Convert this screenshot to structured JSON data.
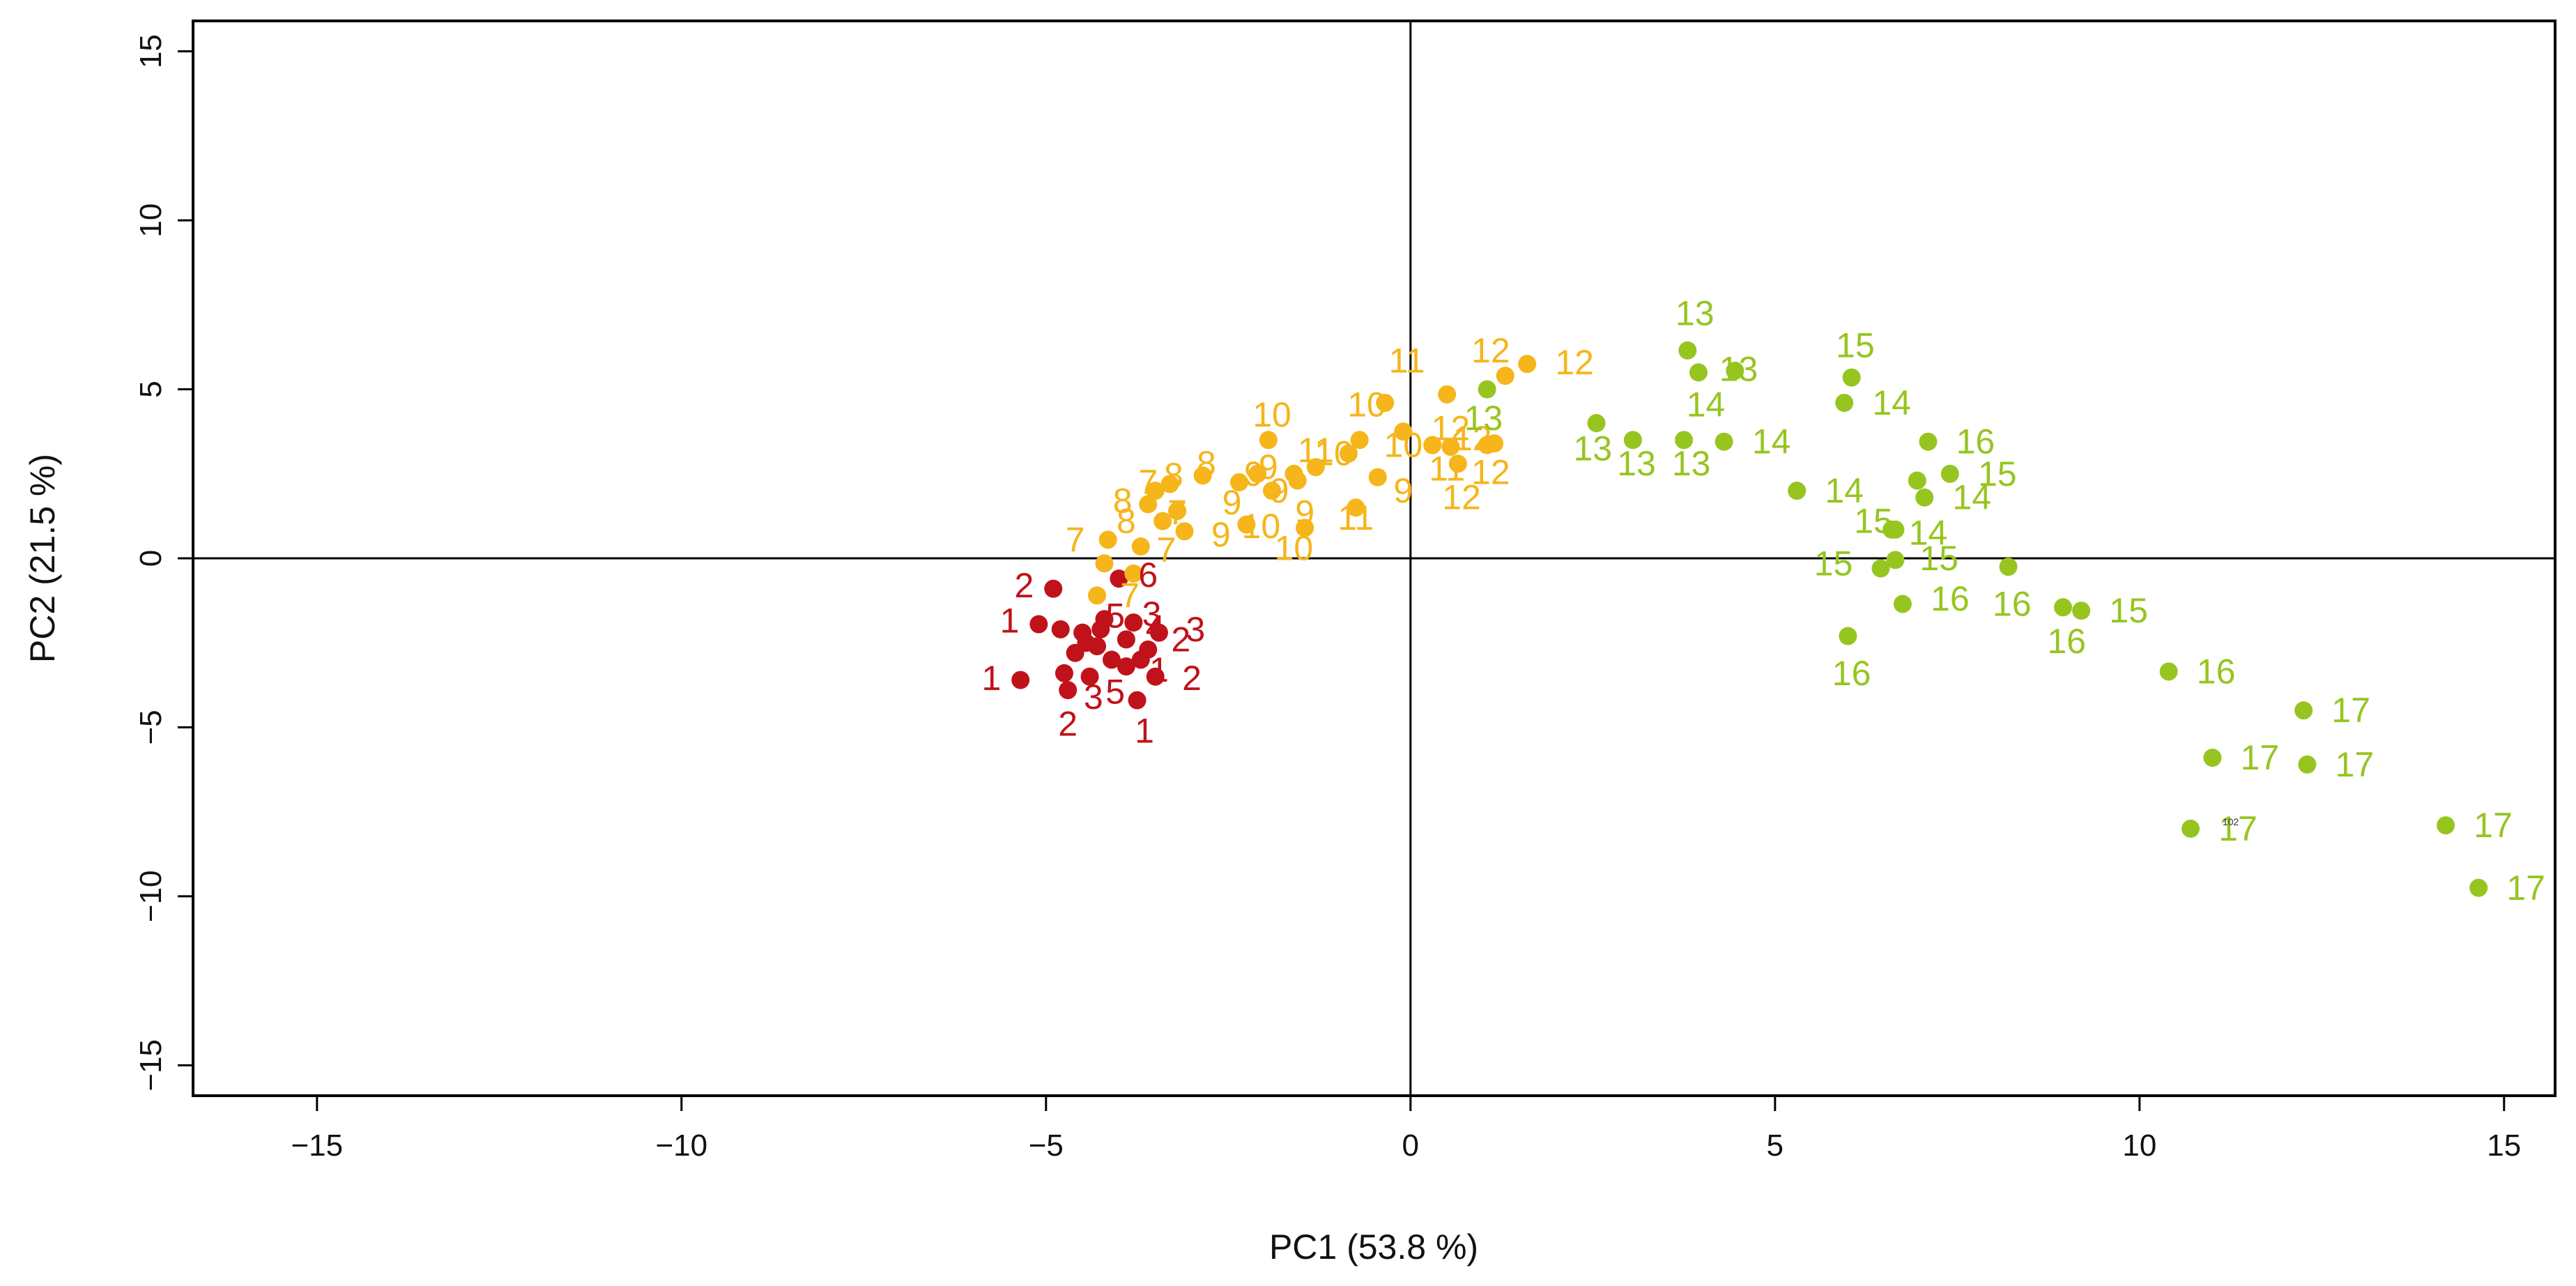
{
  "chart_data": {
    "type": "scatter",
    "title": "",
    "xlabel": "PC1 (53.8 %)",
    "ylabel": "PC2 (21.5 %)",
    "xlim": [
      -16.7,
      15.7
    ],
    "ylim": [
      -15.9,
      15.9
    ],
    "xticks": [
      -15,
      -10,
      -5,
      0,
      5,
      10,
      15
    ],
    "yticks": [
      -15,
      -10,
      -5,
      0,
      5,
      10,
      15
    ],
    "xtick_labels": [
      "−15",
      "−10",
      "−5",
      "0",
      "5",
      "10",
      "15"
    ],
    "ytick_labels": [
      "−15",
      "−10",
      "−5",
      "0",
      "5",
      "10",
      "15"
    ],
    "reference_lines": {
      "x": 0,
      "y": 0
    },
    "groups": {
      "red": {
        "color": "#C0121A"
      },
      "orange": {
        "color": "#F5B51B"
      },
      "green": {
        "color": "#96C520"
      }
    },
    "series": [
      {
        "name": "red",
        "color": "#C0121A",
        "points": [
          {
            "x": -5.35,
            "y": -3.6,
            "label": "1",
            "dx": -0.4,
            "dy": 0.05
          },
          {
            "x": -5.1,
            "y": -1.95,
            "label": "1",
            "dx": -0.4,
            "dy": 0.1
          },
          {
            "x": -4.9,
            "y": -0.9,
            "label": "2",
            "dx": -0.4,
            "dy": 0.1
          },
          {
            "x": -4.75,
            "y": -3.4,
            "label": "2",
            "dx": 0.05,
            "dy": -1.5
          },
          {
            "x": -4.7,
            "y": -3.9,
            "label": "3",
            "dx": 0.35,
            "dy": -0.2
          },
          {
            "x": -4.6,
            "y": -2.8,
            "label": "",
            "dx": 0,
            "dy": 0
          },
          {
            "x": -4.5,
            "y": -2.2,
            "label": "",
            "dx": 0,
            "dy": 0
          },
          {
            "x": -4.4,
            "y": -3.5,
            "label": "5",
            "dx": 0.35,
            "dy": -0.45
          },
          {
            "x": -4.3,
            "y": -2.6,
            "label": "",
            "dx": 0,
            "dy": 0
          },
          {
            "x": -4.2,
            "y": -1.8,
            "label": "5",
            "dx": 0.15,
            "dy": 0.1
          },
          {
            "x": -4.1,
            "y": -3.0,
            "label": "",
            "dx": 0,
            "dy": 0
          },
          {
            "x": -4.0,
            "y": -0.6,
            "label": "6",
            "dx": 0.4,
            "dy": 0.1
          },
          {
            "x": -3.9,
            "y": -2.4,
            "label": "4",
            "dx": 0.4,
            "dy": 0.35
          },
          {
            "x": -3.8,
            "y": -1.9,
            "label": "3",
            "dx": 0.25,
            "dy": 0.25
          },
          {
            "x": -3.75,
            "y": -4.2,
            "label": "1",
            "dx": 0.1,
            "dy": -0.9
          },
          {
            "x": -3.6,
            "y": -2.7,
            "label": "2",
            "dx": 0.45,
            "dy": 0.3
          },
          {
            "x": -3.5,
            "y": -3.5,
            "label": "2",
            "dx": 0.5,
            "dy": -0.05
          },
          {
            "x": -3.45,
            "y": -2.2,
            "label": "3",
            "dx": 0.5,
            "dy": 0.1
          },
          {
            "x": -3.9,
            "y": -3.2,
            "label": "1",
            "dx": 0.45,
            "dy": -0.1
          },
          {
            "x": -4.45,
            "y": -2.5,
            "label": "",
            "dx": 0,
            "dy": 0
          },
          {
            "x": -4.25,
            "y": -2.1,
            "label": "",
            "dx": 0,
            "dy": 0
          },
          {
            "x": -3.7,
            "y": -3.0,
            "label": "",
            "dx": 0,
            "dy": 0
          },
          {
            "x": -4.8,
            "y": -2.1,
            "label": "",
            "dx": 0,
            "dy": 0
          }
        ]
      },
      {
        "name": "orange",
        "color": "#F5B51B",
        "points": [
          {
            "x": -4.15,
            "y": 0.55,
            "label": "7",
            "dx": -0.45,
            "dy": 0.0
          },
          {
            "x": -4.2,
            "y": -0.15,
            "label": "",
            "dx": 0,
            "dy": 0
          },
          {
            "x": -4.3,
            "y": -1.1,
            "label": "7",
            "dx": 0.45,
            "dy": 0.0
          },
          {
            "x": -3.8,
            "y": -0.45,
            "label": "",
            "dx": 0,
            "dy": 0
          },
          {
            "x": -3.7,
            "y": 0.35,
            "label": "7",
            "dx": 0.35,
            "dy": -0.1
          },
          {
            "x": -3.6,
            "y": 1.6,
            "label": "8",
            "dx": -0.35,
            "dy": 0.1
          },
          {
            "x": -3.5,
            "y": 2.0,
            "label": "7",
            "dx": -0.1,
            "dy": 0.25
          },
          {
            "x": -3.4,
            "y": 1.1,
            "label": "8",
            "dx": -0.5,
            "dy": 0.0
          },
          {
            "x": -3.3,
            "y": 2.2,
            "label": "8",
            "dx": 0.05,
            "dy": 0.25
          },
          {
            "x": -3.2,
            "y": 1.4,
            "label": "7",
            "dx": 0.0,
            "dy": -0.05
          },
          {
            "x": -3.1,
            "y": 0.8,
            "label": "9",
            "dx": 0.5,
            "dy": -0.1
          },
          {
            "x": -2.85,
            "y": 2.45,
            "label": "8",
            "dx": 0.05,
            "dy": 0.35
          },
          {
            "x": -2.35,
            "y": 2.25,
            "label": "9",
            "dx": -0.1,
            "dy": -0.6
          },
          {
            "x": -2.25,
            "y": 1.0,
            "label": "10",
            "dx": 0.2,
            "dy": -0.05
          },
          {
            "x": -2.1,
            "y": 2.5,
            "label": "9",
            "dx": -0.05,
            "dy": 0.0
          },
          {
            "x": -1.95,
            "y": 3.5,
            "label": "10",
            "dx": 0.05,
            "dy": 0.75
          },
          {
            "x": -1.9,
            "y": 2.0,
            "label": "9",
            "dx": 0.1,
            "dy": 0.0
          },
          {
            "x": -1.6,
            "y": 2.5,
            "label": "9",
            "dx": -0.35,
            "dy": 0.2
          },
          {
            "x": -1.55,
            "y": 2.3,
            "label": "9",
            "dx": 0.1,
            "dy": -0.95
          },
          {
            "x": -1.45,
            "y": 0.9,
            "label": "10",
            "dx": -0.15,
            "dy": -0.6
          },
          {
            "x": -1.3,
            "y": 2.7,
            "label": "11",
            "dx": 0.0,
            "dy": 0.5
          },
          {
            "x": -0.85,
            "y": 3.1,
            "label": "10",
            "dx": -0.2,
            "dy": 0.0
          },
          {
            "x": -0.75,
            "y": 1.5,
            "label": "11",
            "dx": 0.0,
            "dy": -0.3
          },
          {
            "x": -0.7,
            "y": 3.5,
            "label": "",
            "dx": 0,
            "dy": 0
          },
          {
            "x": -0.45,
            "y": 2.4,
            "label": "9",
            "dx": 0.35,
            "dy": -0.4
          },
          {
            "x": -0.35,
            "y": 4.6,
            "label": "10",
            "dx": -0.25,
            "dy": -0.05
          },
          {
            "x": -0.1,
            "y": 3.75,
            "label": "10",
            "dx": 0.0,
            "dy": -0.4
          },
          {
            "x": 0.3,
            "y": 3.35,
            "label": "11",
            "dx": 0.2,
            "dy": -0.7
          },
          {
            "x": 0.5,
            "y": 4.85,
            "label": "11",
            "dx": -0.55,
            "dy": 1.0
          },
          {
            "x": 0.55,
            "y": 3.3,
            "label": "12",
            "dx": 0.0,
            "dy": 0.55
          },
          {
            "x": 0.65,
            "y": 2.8,
            "label": "12",
            "dx": 0.05,
            "dy": -1.0
          },
          {
            "x": 1.05,
            "y": 3.35,
            "label": "12",
            "dx": 0.05,
            "dy": -0.8
          },
          {
            "x": 1.15,
            "y": 3.4,
            "label": "12",
            "dx": -0.3,
            "dy": 0.15
          },
          {
            "x": 1.3,
            "y": 5.4,
            "label": "12",
            "dx": -0.2,
            "dy": 0.75
          },
          {
            "x": 1.6,
            "y": 5.75,
            "label": "12",
            "dx": 0.65,
            "dy": 0.05
          }
        ]
      },
      {
        "name": "green",
        "color": "#96C520",
        "points": [
          {
            "x": 1.05,
            "y": 5.0,
            "label": "13",
            "dx": -0.05,
            "dy": -0.85
          },
          {
            "x": 2.55,
            "y": 4.0,
            "label": "13",
            "dx": -0.05,
            "dy": -0.75
          },
          {
            "x": 3.05,
            "y": 3.5,
            "label": "13",
            "dx": 0.05,
            "dy": -0.7
          },
          {
            "x": 3.75,
            "y": 3.5,
            "label": "13",
            "dx": 0.1,
            "dy": -0.7
          },
          {
            "x": 3.8,
            "y": 6.15,
            "label": "13",
            "dx": 0.1,
            "dy": 1.1
          },
          {
            "x": 3.95,
            "y": 5.5,
            "label": "14",
            "dx": 0.1,
            "dy": -0.95
          },
          {
            "x": 4.45,
            "y": 5.55,
            "label": "13",
            "dx": 0.05,
            "dy": 0.05
          },
          {
            "x": 4.3,
            "y": 3.45,
            "label": "14",
            "dx": 0.65,
            "dy": 0.0
          },
          {
            "x": 5.3,
            "y": 2.0,
            "label": "14",
            "dx": 0.65,
            "dy": 0.0
          },
          {
            "x": 5.95,
            "y": 4.6,
            "label": "14",
            "dx": 0.65,
            "dy": 0.0
          },
          {
            "x": 6.05,
            "y": 5.35,
            "label": "15",
            "dx": 0.05,
            "dy": 0.95
          },
          {
            "x": 6.45,
            "y": -0.3,
            "label": "15",
            "dx": -0.65,
            "dy": 0.15
          },
          {
            "x": 6.6,
            "y": 0.85,
            "label": "15",
            "dx": -0.25,
            "dy": 0.25
          },
          {
            "x": 6.65,
            "y": -0.05,
            "label": "15",
            "dx": 0.6,
            "dy": 0.05
          },
          {
            "x": 6.75,
            "y": -1.35,
            "label": "16",
            "dx": 0.65,
            "dy": 0.15
          },
          {
            "x": 6.95,
            "y": 2.3,
            "label": "",
            "dx": 0,
            "dy": 0
          },
          {
            "x": 7.05,
            "y": 1.8,
            "label": "14",
            "dx": 0.65,
            "dy": 0.0
          },
          {
            "x": 7.1,
            "y": 3.45,
            "label": "16",
            "dx": 0.65,
            "dy": 0.0
          },
          {
            "x": 7.4,
            "y": 2.5,
            "label": "15",
            "dx": 0.65,
            "dy": 0.0
          },
          {
            "x": 6.65,
            "y": 0.85,
            "label": "14",
            "dx": 0.45,
            "dy": -0.1
          },
          {
            "x": 6.0,
            "y": -2.3,
            "label": "16",
            "dx": 0.05,
            "dy": -1.1
          },
          {
            "x": 8.2,
            "y": -0.25,
            "label": "16",
            "dx": 0.05,
            "dy": -1.1
          },
          {
            "x": 8.95,
            "y": -1.45,
            "label": "16",
            "dx": 0.05,
            "dy": -1.0
          },
          {
            "x": 9.2,
            "y": -1.55,
            "label": "15",
            "dx": 0.65,
            "dy": 0.0
          },
          {
            "x": 10.4,
            "y": -3.35,
            "label": "16",
            "dx": 0.65,
            "dy": 0.0
          },
          {
            "x": 11.0,
            "y": -5.9,
            "label": "17",
            "dx": 0.65,
            "dy": 0.0
          },
          {
            "x": 10.7,
            "y": -8.0,
            "label": "17",
            "dx": 0.65,
            "dy": 0.0
          },
          {
            "x": 12.25,
            "y": -4.5,
            "label": "17",
            "dx": 0.65,
            "dy": 0.0
          },
          {
            "x": 12.3,
            "y": -6.1,
            "label": "17",
            "dx": 0.65,
            "dy": 0.0
          },
          {
            "x": 14.2,
            "y": -7.9,
            "label": "17",
            "dx": 0.65,
            "dy": 0.0
          },
          {
            "x": 14.65,
            "y": -9.75,
            "label": "17",
            "dx": 0.65,
            "dy": 0.0
          }
        ]
      }
    ],
    "annotations": [
      {
        "text": "102",
        "x": 11.25,
        "y": -7.8
      }
    ]
  }
}
